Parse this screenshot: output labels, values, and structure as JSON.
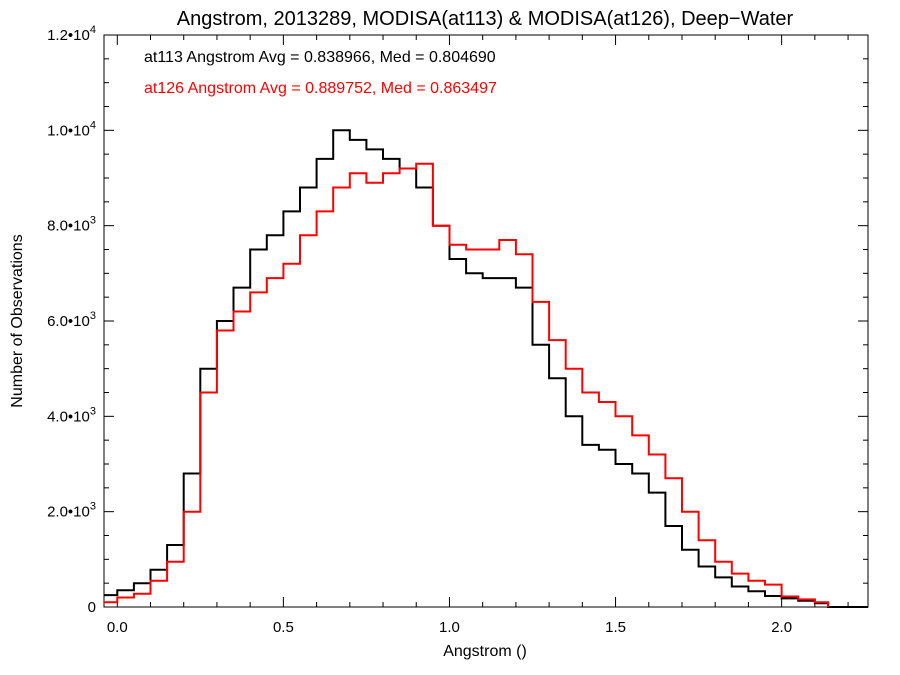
{
  "chart_data": {
    "type": "line",
    "title": "Angstrom, 2013289, MODISA(at113) & MODISA(at126), Deep−Water",
    "xlabel": "Angstrom ()",
    "ylabel": "Number of Observations",
    "xlim": [
      -0.04,
      2.26
    ],
    "ylim": [
      0,
      12000
    ],
    "x_ticks": [
      {
        "v": 0.0,
        "label": "0.0"
      },
      {
        "v": 0.5,
        "label": "0.5"
      },
      {
        "v": 1.0,
        "label": "1.0"
      },
      {
        "v": 1.5,
        "label": "1.5"
      },
      {
        "v": 2.0,
        "label": "2.0"
      }
    ],
    "y_ticks": [
      {
        "v": 0,
        "mant": "0",
        "exp": ""
      },
      {
        "v": 2000,
        "mant": "2.0•10",
        "exp": "3"
      },
      {
        "v": 4000,
        "mant": "4.0•10",
        "exp": "3"
      },
      {
        "v": 6000,
        "mant": "6.0•10",
        "exp": "3"
      },
      {
        "v": 8000,
        "mant": "8.0•10",
        "exp": "3"
      },
      {
        "v": 10000,
        "mant": "1.0•10",
        "exp": "4"
      },
      {
        "v": 12000,
        "mant": "1.2•10",
        "exp": "4"
      }
    ],
    "annotations": [
      "at113 Angstrom Avg = 0.838966, Med = 0.804690",
      "at126 Angstrom Avg = 0.889752, Med = 0.863497"
    ],
    "grid": false,
    "series": [
      {
        "name": "at113",
        "color": "#000000",
        "x": [
          -0.04,
          0.0,
          0.05,
          0.1,
          0.15,
          0.2,
          0.25,
          0.3,
          0.35,
          0.4,
          0.45,
          0.5,
          0.55,
          0.6,
          0.65,
          0.7,
          0.75,
          0.8,
          0.85,
          0.9,
          0.95,
          1.0,
          1.05,
          1.1,
          1.15,
          1.2,
          1.25,
          1.3,
          1.35,
          1.4,
          1.45,
          1.5,
          1.55,
          1.6,
          1.65,
          1.7,
          1.75,
          1.8,
          1.85,
          1.9,
          1.95,
          2.0,
          2.05,
          2.1,
          2.14
        ],
        "values": [
          250,
          350,
          500,
          780,
          1300,
          2800,
          5000,
          6000,
          6700,
          7500,
          7800,
          8300,
          8800,
          9400,
          10000,
          9800,
          9600,
          9400,
          9200,
          8800,
          8000,
          7300,
          7000,
          6900,
          6900,
          6700,
          5500,
          4800,
          4000,
          3400,
          3300,
          3000,
          2800,
          2400,
          1700,
          1200,
          850,
          620,
          430,
          330,
          230,
          180,
          130,
          80,
          20
        ]
      },
      {
        "name": "at126",
        "color": "#ff0000",
        "x": [
          -0.04,
          0.0,
          0.05,
          0.1,
          0.15,
          0.2,
          0.25,
          0.3,
          0.35,
          0.4,
          0.45,
          0.5,
          0.55,
          0.6,
          0.65,
          0.7,
          0.75,
          0.8,
          0.85,
          0.9,
          0.95,
          1.0,
          1.05,
          1.1,
          1.15,
          1.2,
          1.25,
          1.3,
          1.35,
          1.4,
          1.45,
          1.5,
          1.55,
          1.6,
          1.65,
          1.7,
          1.75,
          1.8,
          1.85,
          1.9,
          1.95,
          2.0,
          2.05,
          2.1,
          2.14
        ],
        "values": [
          100,
          200,
          280,
          550,
          950,
          2000,
          4500,
          5800,
          6200,
          6600,
          6900,
          7200,
          7800,
          8300,
          8800,
          9100,
          8900,
          9100,
          9200,
          9300,
          8000,
          7600,
          7500,
          7500,
          7700,
          7400,
          6400,
          5600,
          5000,
          4500,
          4300,
          4000,
          3600,
          3200,
          2700,
          2000,
          1400,
          950,
          700,
          550,
          470,
          220,
          160,
          100,
          30
        ]
      }
    ]
  }
}
